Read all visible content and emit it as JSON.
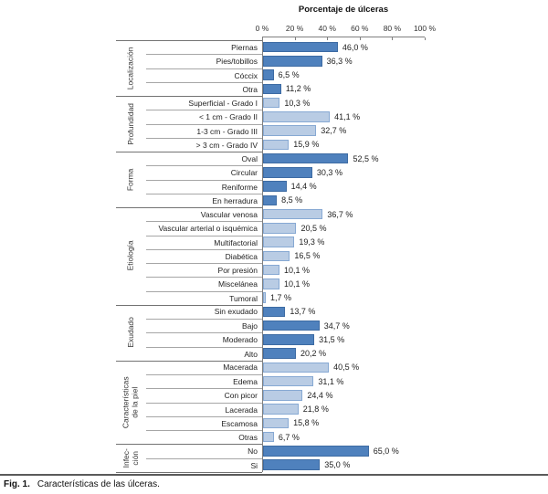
{
  "chart_data": {
    "type": "bar",
    "orientation": "horizontal",
    "title": "Porcentaje de úlceras",
    "xlabel": "Porcentaje de úlceras",
    "ylabel": "",
    "xlim": [
      0,
      100
    ],
    "x_ticks": [
      {
        "value": 0,
        "label": "0 %"
      },
      {
        "value": 20,
        "label": "20 %"
      },
      {
        "value": 40,
        "label": "40 %"
      },
      {
        "value": 60,
        "label": "60 %"
      },
      {
        "value": 80,
        "label": "80 %"
      },
      {
        "value": 100,
        "label": "100 %"
      }
    ],
    "grid": false,
    "legend": false,
    "groups": [
      {
        "label": "Localización",
        "shade": "dark",
        "rows": [
          {
            "label": "Piernas",
            "value": 46.0,
            "display": "46,0 %"
          },
          {
            "label": "Pies/tobillos",
            "value": 36.3,
            "display": "36,3 %"
          },
          {
            "label": "Cóccix",
            "value": 6.5,
            "display": "6,5 %"
          },
          {
            "label": "Otra",
            "value": 11.2,
            "display": "11,2 %"
          }
        ]
      },
      {
        "label": "Profundidad",
        "shade": "light",
        "rows": [
          {
            "label": "Superficial - Grado I",
            "value": 10.3,
            "display": "10,3 %"
          },
          {
            "label": "< 1 cm - Grado II",
            "value": 41.1,
            "display": "41,1 %"
          },
          {
            "label": "1-3 cm - Grado III",
            "value": 32.7,
            "display": "32,7 %"
          },
          {
            "label": "> 3 cm - Grado IV",
            "value": 15.9,
            "display": "15,9 %"
          }
        ]
      },
      {
        "label": "Forma",
        "shade": "dark",
        "rows": [
          {
            "label": "Oval",
            "value": 52.5,
            "display": "52,5 %"
          },
          {
            "label": "Circular",
            "value": 30.3,
            "display": "30,3 %"
          },
          {
            "label": "Reniforme",
            "value": 14.4,
            "display": "14,4 %"
          },
          {
            "label": "En herradura",
            "value": 8.5,
            "display": "8,5 %"
          }
        ]
      },
      {
        "label": "Etiología",
        "shade": "light",
        "rows": [
          {
            "label": "Vascular venosa",
            "value": 36.7,
            "display": "36,7 %"
          },
          {
            "label": "Vascular arterial o isquémica",
            "value": 20.5,
            "display": "20,5 %"
          },
          {
            "label": "Multifactorial",
            "value": 19.3,
            "display": "19,3 %"
          },
          {
            "label": "Diabética",
            "value": 16.5,
            "display": "16,5 %"
          },
          {
            "label": "Por presión",
            "value": 10.1,
            "display": "10,1 %"
          },
          {
            "label": "Miscelánea",
            "value": 10.1,
            "display": "10,1 %"
          },
          {
            "label": "Tumoral",
            "value": 1.7,
            "display": "1,7 %"
          }
        ]
      },
      {
        "label": "Exudado",
        "shade": "dark",
        "rows": [
          {
            "label": "Sin exudado",
            "value": 13.7,
            "display": "13,7 %"
          },
          {
            "label": "Bajo",
            "value": 34.7,
            "display": "34,7 %"
          },
          {
            "label": "Moderado",
            "value": 31.5,
            "display": "31,5 %"
          },
          {
            "label": "Alto",
            "value": 20.2,
            "display": "20,2 %"
          }
        ]
      },
      {
        "label": "Características\nde la piel",
        "shade": "light",
        "rows": [
          {
            "label": "Macerada",
            "value": 40.5,
            "display": "40,5 %"
          },
          {
            "label": "Edema",
            "value": 31.1,
            "display": "31,1 %"
          },
          {
            "label": "Con picor",
            "value": 24.4,
            "display": "24,4 %"
          },
          {
            "label": "Lacerada",
            "value": 21.8,
            "display": "21,8 %"
          },
          {
            "label": "Escamosa",
            "value": 15.8,
            "display": "15,8 %"
          },
          {
            "label": "Otras",
            "value": 6.7,
            "display": "6,7 %"
          }
        ]
      },
      {
        "label": "Infec-\nción",
        "shade": "dark",
        "rows": [
          {
            "label": "No",
            "value": 65.0,
            "display": "65,0 %"
          },
          {
            "label": "Si",
            "value": 35.0,
            "display": "35,0 %"
          }
        ]
      }
    ]
  },
  "colors": {
    "dark_fill": "#4f81bd",
    "dark_border": "#3d6ba3",
    "light_fill": "#b9cce4",
    "light_border": "#87a9d3",
    "separator": "#737373",
    "row_separator": "#a6a6a6",
    "axis": "#808080"
  },
  "caption": {
    "fig_label": "Fig. 1.",
    "text": "Características de las úlceras."
  }
}
